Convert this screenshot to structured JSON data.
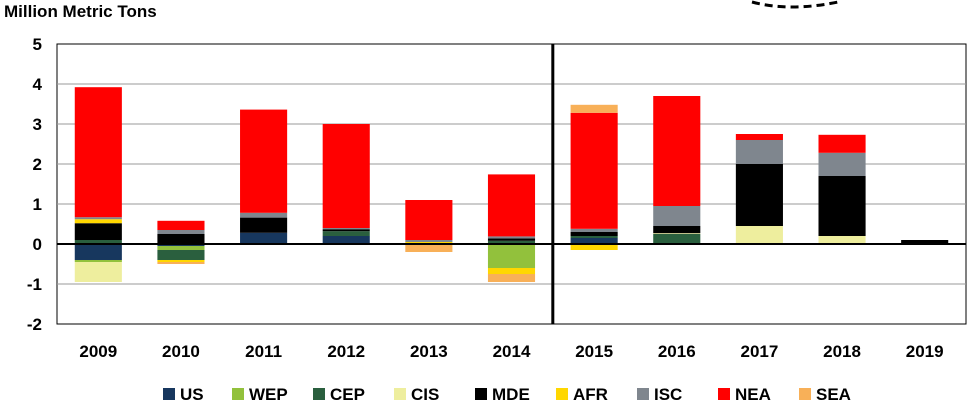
{
  "chart_data": {
    "type": "bar",
    "stacked": true,
    "ylabel": "Million Metric Tons",
    "ylim": [
      -2,
      5
    ],
    "yticks": [
      5,
      4,
      3,
      2,
      1,
      0,
      -1,
      -2
    ],
    "grid": true,
    "legend_position": "bottom",
    "categories": [
      "2009",
      "2010",
      "2011",
      "2012",
      "2013",
      "2014",
      "2015",
      "2016",
      "2017",
      "2018",
      "2019"
    ],
    "divider_after_category": "2014",
    "series": [
      {
        "name": "US",
        "color": "#17375E",
        "values": [
          -0.4,
          -0.05,
          0.28,
          0.2,
          0,
          0,
          0.15,
          0,
          0,
          0,
          0
        ]
      },
      {
        "name": "WEP",
        "color": "#92C13C",
        "values": [
          -0.05,
          -0.1,
          0,
          0,
          0,
          -0.6,
          0,
          0,
          0,
          0,
          0
        ]
      },
      {
        "name": "CEP",
        "color": "#2A5F3E",
        "values": [
          0.1,
          -0.25,
          0,
          0.12,
          0,
          0.08,
          0.05,
          0.25,
          0,
          0,
          0
        ]
      },
      {
        "name": "CIS",
        "color": "#EEEE9E",
        "values": [
          -0.5,
          0,
          0,
          0,
          0,
          0,
          0,
          0.02,
          0.45,
          0.2,
          0
        ]
      },
      {
        "name": "MDE",
        "color": "#000000",
        "values": [
          0.42,
          0.25,
          0.38,
          0.05,
          0,
          0.06,
          0.1,
          0.18,
          1.55,
          1.5,
          0.1
        ]
      },
      {
        "name": "AFR",
        "color": "#FFD700",
        "values": [
          0.1,
          -0.05,
          0,
          0,
          0.05,
          -0.15,
          -0.15,
          0,
          0,
          0,
          0
        ]
      },
      {
        "name": "ISC",
        "color": "#7F868E",
        "values": [
          0.05,
          0.1,
          0.12,
          0.03,
          0.05,
          0.05,
          0.08,
          0.5,
          0.6,
          0.58,
          0
        ]
      },
      {
        "name": "NEA",
        "color": "#FF0000",
        "values": [
          3.25,
          0.23,
          2.58,
          2.6,
          1.0,
          1.55,
          2.9,
          2.75,
          0.15,
          0.45,
          0
        ]
      },
      {
        "name": "SEA",
        "color": "#F8B058",
        "values": [
          0,
          -0.05,
          0,
          0,
          -0.2,
          -0.2,
          0.2,
          0,
          0,
          0,
          0
        ]
      }
    ]
  }
}
